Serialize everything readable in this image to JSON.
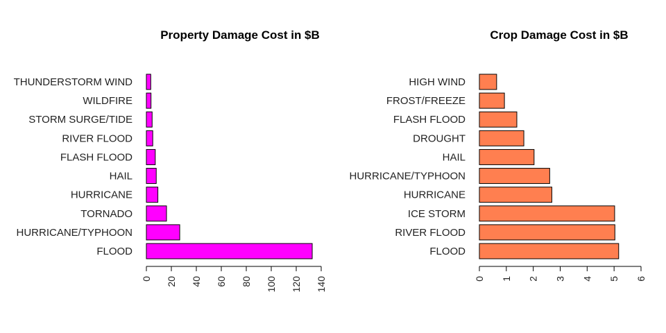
{
  "chart_data": [
    {
      "type": "bar",
      "orientation": "horizontal",
      "title": "Property Damage Cost in $B",
      "xlabel": "",
      "ylabel": "",
      "categories": [
        "FLOOD",
        "HURRICANE/TYPHOON",
        "TORNADO",
        "HURRICANE",
        "HAIL",
        "FLASH FLOOD",
        "RIVER FLOOD",
        "STORM SURGE/TIDE",
        "WILDFIRE",
        "THUNDERSTORM WIND"
      ],
      "values": [
        132.8,
        26.7,
        16.1,
        9.2,
        7.9,
        7.1,
        5.1,
        4.6,
        3.7,
        3.5
      ],
      "xlim": [
        0,
        140
      ],
      "xticks": [
        0,
        20,
        40,
        60,
        80,
        100,
        120,
        140
      ],
      "bar_color": "#FF00FF",
      "grid": false,
      "legend": "none"
    },
    {
      "type": "bar",
      "orientation": "horizontal",
      "title": "Crop Damage Cost in $B",
      "xlabel": "",
      "ylabel": "",
      "categories": [
        "FLOOD",
        "RIVER FLOOD",
        "ICE STORM",
        "HURRICANE",
        "HURRICANE/TYPHOON",
        "HAIL",
        "DROUGHT",
        "FLASH FLOOD",
        "FROST/FREEZE",
        "HIGH WIND"
      ],
      "values": [
        5.17,
        5.03,
        5.02,
        2.69,
        2.61,
        2.03,
        1.65,
        1.39,
        0.93,
        0.64
      ],
      "xlim": [
        0,
        6
      ],
      "xticks": [
        0,
        1,
        2,
        3,
        4,
        5,
        6
      ],
      "bar_color": "#FF7F50",
      "grid": false,
      "legend": "none"
    }
  ]
}
